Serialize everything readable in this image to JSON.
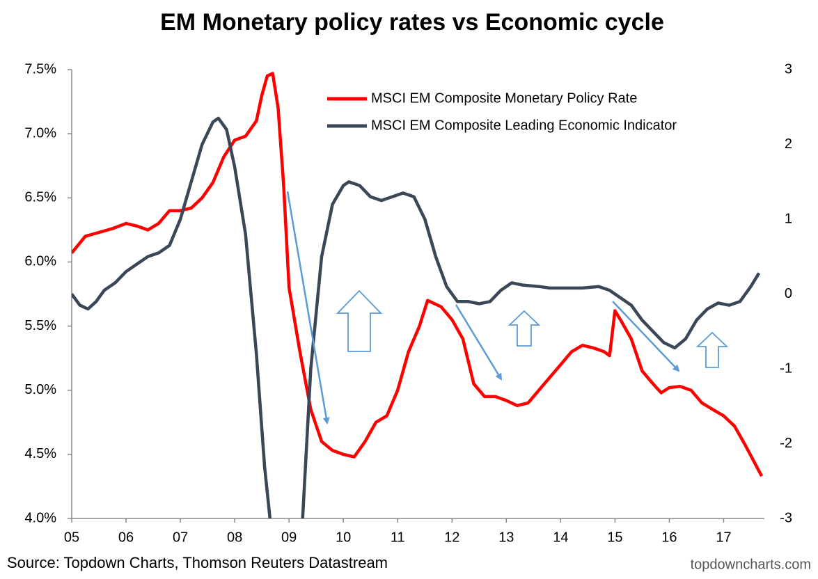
{
  "chart_data": {
    "type": "line",
    "title": "EM Monetary policy rates vs Economic cycle",
    "source": "Source: Topdown Charts, Thomson Reuters Datastream",
    "watermark": "topdowncharts.com",
    "xlim": [
      2005,
      2017.75
    ],
    "xticks": [
      {
        "value": 2005,
        "label": "05"
      },
      {
        "value": 2006,
        "label": "06"
      },
      {
        "value": 2007,
        "label": "07"
      },
      {
        "value": 2008,
        "label": "08"
      },
      {
        "value": 2009,
        "label": "09"
      },
      {
        "value": 2010,
        "label": "10"
      },
      {
        "value": 2011,
        "label": "11"
      },
      {
        "value": 2012,
        "label": "12"
      },
      {
        "value": 2013,
        "label": "13"
      },
      {
        "value": 2014,
        "label": "14"
      },
      {
        "value": 2015,
        "label": "15"
      },
      {
        "value": 2016,
        "label": "16"
      },
      {
        "value": 2017,
        "label": "17"
      }
    ],
    "ylim": [
      4.0,
      7.5
    ],
    "yticks": [
      {
        "value": 4.0,
        "label": "4.0%"
      },
      {
        "value": 4.5,
        "label": "4.5%"
      },
      {
        "value": 5.0,
        "label": "5.0%"
      },
      {
        "value": 5.5,
        "label": "5.5%"
      },
      {
        "value": 6.0,
        "label": "6.0%"
      },
      {
        "value": 6.5,
        "label": "6.5%"
      },
      {
        "value": 7.0,
        "label": "7.0%"
      },
      {
        "value": 7.5,
        "label": "7.5%"
      }
    ],
    "y2lim": [
      -3,
      3
    ],
    "y2ticks": [
      3,
      2,
      1,
      0,
      -1,
      -2,
      -3
    ],
    "grid": false,
    "legend": "top-right",
    "series": [
      {
        "name": "MSCI EM Composite Monetary Policy Rate",
        "color": "#ff0000",
        "axis": "y",
        "x": [
          2005.0,
          2005.25,
          2005.5,
          2005.75,
          2006.0,
          2006.2,
          2006.4,
          2006.6,
          2006.8,
          2007.0,
          2007.2,
          2007.4,
          2007.6,
          2007.8,
          2008.0,
          2008.2,
          2008.4,
          2008.5,
          2008.6,
          2008.7,
          2008.8,
          2008.9,
          2009.0,
          2009.2,
          2009.4,
          2009.6,
          2009.8,
          2010.0,
          2010.2,
          2010.4,
          2010.6,
          2010.8,
          2011.0,
          2011.2,
          2011.4,
          2011.55,
          2011.8,
          2012.0,
          2012.2,
          2012.4,
          2012.6,
          2012.8,
          2013.0,
          2013.2,
          2013.4,
          2013.6,
          2013.8,
          2014.0,
          2014.2,
          2014.4,
          2014.6,
          2014.8,
          2014.9,
          2015.0,
          2015.1,
          2015.3,
          2015.5,
          2015.7,
          2015.85,
          2016.0,
          2016.2,
          2016.4,
          2016.6,
          2016.8,
          2017.0,
          2017.2,
          2017.4,
          2017.55,
          2017.7
        ],
        "values": [
          6.07,
          6.2,
          6.23,
          6.26,
          6.3,
          6.28,
          6.25,
          6.3,
          6.4,
          6.4,
          6.42,
          6.5,
          6.62,
          6.82,
          6.95,
          6.98,
          7.1,
          7.3,
          7.45,
          7.47,
          7.2,
          6.6,
          5.8,
          5.3,
          4.85,
          4.6,
          4.53,
          4.5,
          4.48,
          4.6,
          4.75,
          4.8,
          5.0,
          5.3,
          5.5,
          5.7,
          5.65,
          5.55,
          5.4,
          5.05,
          4.95,
          4.95,
          4.92,
          4.88,
          4.9,
          5.0,
          5.1,
          5.2,
          5.3,
          5.35,
          5.33,
          5.3,
          5.27,
          5.62,
          5.55,
          5.4,
          5.15,
          5.05,
          4.98,
          5.02,
          5.03,
          5.0,
          4.9,
          4.85,
          4.8,
          4.72,
          4.57,
          4.45,
          4.33
        ]
      },
      {
        "name": "MSCI EM Composite Leading Economic Indicator",
        "color": "#3b4656",
        "axis": "y2",
        "x": [
          2005.0,
          2005.15,
          2005.3,
          2005.45,
          2005.6,
          2005.8,
          2006.0,
          2006.2,
          2006.4,
          2006.6,
          2006.8,
          2007.0,
          2007.2,
          2007.4,
          2007.6,
          2007.7,
          2007.85,
          2008.0,
          2008.2,
          2008.4,
          2008.55,
          2008.65,
          2008.9,
          2009.25,
          2009.4,
          2009.6,
          2009.8,
          2010.0,
          2010.1,
          2010.3,
          2010.5,
          2010.7,
          2010.9,
          2011.1,
          2011.3,
          2011.5,
          2011.7,
          2011.9,
          2012.1,
          2012.3,
          2012.5,
          2012.7,
          2012.9,
          2013.1,
          2013.3,
          2013.6,
          2013.8,
          2014.0,
          2014.4,
          2014.7,
          2014.9,
          2015.1,
          2015.3,
          2015.5,
          2015.7,
          2015.9,
          2016.1,
          2016.3,
          2016.5,
          2016.7,
          2016.9,
          2017.1,
          2017.3,
          2017.5,
          2017.65
        ],
        "values": [
          0.0,
          -0.15,
          -0.2,
          -0.1,
          0.05,
          0.15,
          0.3,
          0.4,
          0.5,
          0.55,
          0.65,
          1.0,
          1.5,
          2.0,
          2.3,
          2.35,
          2.2,
          1.7,
          0.8,
          -0.8,
          -2.3,
          -3.0,
          null,
          -3.0,
          -1.0,
          0.5,
          1.2,
          1.45,
          1.5,
          1.45,
          1.3,
          1.25,
          1.3,
          1.35,
          1.3,
          1.0,
          0.5,
          0.1,
          -0.1,
          -0.1,
          -0.13,
          -0.1,
          0.05,
          0.15,
          0.12,
          0.1,
          0.08,
          0.08,
          0.08,
          0.1,
          0.05,
          -0.05,
          -0.15,
          -0.35,
          -0.5,
          -0.65,
          -0.72,
          -0.6,
          -0.35,
          -0.2,
          -0.12,
          -0.15,
          -0.1,
          0.1,
          0.28
        ]
      }
    ]
  }
}
